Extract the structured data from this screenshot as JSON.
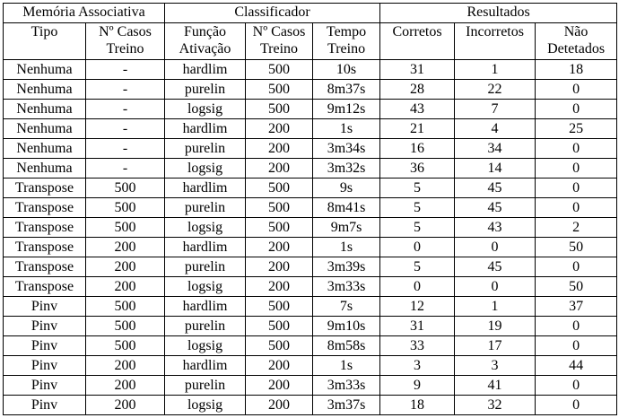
{
  "groups": {
    "memoria": "Memória Associativa",
    "classificador": "Classificador",
    "resultados": "Resultados"
  },
  "columns": {
    "tipo": "Tipo",
    "casos_mem_1": "Nº Casos",
    "casos_mem_2": "Treino",
    "funcao_1": "Função",
    "funcao_2": "Ativação",
    "casos_cls_1": "Nº Casos",
    "casos_cls_2": "Treino",
    "tempo_1": "Tempo",
    "tempo_2": "Treino",
    "corretos": "Corretos",
    "incorretos": "Incorretos",
    "nao_1": "Não",
    "nao_2": "Detetados"
  },
  "rows": [
    {
      "tipo": "Nenhuma",
      "casos_mem": "-",
      "funcao": "hardlim",
      "casos_cls": "500",
      "tempo": "10s",
      "corretos": "31",
      "incorretos": "1",
      "nao": "18"
    },
    {
      "tipo": "Nenhuma",
      "casos_mem": "-",
      "funcao": "purelin",
      "casos_cls": "500",
      "tempo": "8m37s",
      "corretos": "28",
      "incorretos": "22",
      "nao": "0"
    },
    {
      "tipo": "Nenhuma",
      "casos_mem": "-",
      "funcao": "logsig",
      "casos_cls": "500",
      "tempo": "9m12s",
      "corretos": "43",
      "incorretos": "7",
      "nao": "0"
    },
    {
      "tipo": "Nenhuma",
      "casos_mem": "-",
      "funcao": "hardlim",
      "casos_cls": "200",
      "tempo": "1s",
      "corretos": "21",
      "incorretos": "4",
      "nao": "25"
    },
    {
      "tipo": "Nenhuma",
      "casos_mem": "-",
      "funcao": "purelin",
      "casos_cls": "200",
      "tempo": "3m34s",
      "corretos": "16",
      "incorretos": "34",
      "nao": "0"
    },
    {
      "tipo": "Nenhuma",
      "casos_mem": "-",
      "funcao": "logsig",
      "casos_cls": "200",
      "tempo": "3m32s",
      "corretos": "36",
      "incorretos": "14",
      "nao": "0"
    },
    {
      "tipo": "Transpose",
      "casos_mem": "500",
      "funcao": "hardlim",
      "casos_cls": "500",
      "tempo": "9s",
      "corretos": "5",
      "incorretos": "45",
      "nao": "0"
    },
    {
      "tipo": "Transpose",
      "casos_mem": "500",
      "funcao": "purelin",
      "casos_cls": "500",
      "tempo": "8m41s",
      "corretos": "5",
      "incorretos": "45",
      "nao": "0"
    },
    {
      "tipo": "Transpose",
      "casos_mem": "500",
      "funcao": "logsig",
      "casos_cls": "500",
      "tempo": "9m7s",
      "corretos": "5",
      "incorretos": "43",
      "nao": "2"
    },
    {
      "tipo": "Transpose",
      "casos_mem": "200",
      "funcao": "hardlim",
      "casos_cls": "200",
      "tempo": "1s",
      "corretos": "0",
      "incorretos": "0",
      "nao": "50"
    },
    {
      "tipo": "Transpose",
      "casos_mem": "200",
      "funcao": "purelin",
      "casos_cls": "200",
      "tempo": "3m39s",
      "corretos": "5",
      "incorretos": "45",
      "nao": "0"
    },
    {
      "tipo": "Transpose",
      "casos_mem": "200",
      "funcao": "logsig",
      "casos_cls": "200",
      "tempo": "3m33s",
      "corretos": "0",
      "incorretos": "0",
      "nao": "50"
    },
    {
      "tipo": "Pinv",
      "casos_mem": "500",
      "funcao": "hardlim",
      "casos_cls": "500",
      "tempo": "7s",
      "corretos": "12",
      "incorretos": "1",
      "nao": "37"
    },
    {
      "tipo": "Pinv",
      "casos_mem": "500",
      "funcao": "purelin",
      "casos_cls": "500",
      "tempo": "9m10s",
      "corretos": "31",
      "incorretos": "19",
      "nao": "0"
    },
    {
      "tipo": "Pinv",
      "casos_mem": "500",
      "funcao": "logsig",
      "casos_cls": "500",
      "tempo": "8m58s",
      "corretos": "33",
      "incorretos": "17",
      "nao": "0"
    },
    {
      "tipo": "Pinv",
      "casos_mem": "200",
      "funcao": "hardlim",
      "casos_cls": "200",
      "tempo": "1s",
      "corretos": "3",
      "incorretos": "3",
      "nao": "44"
    },
    {
      "tipo": "Pinv",
      "casos_mem": "200",
      "funcao": "purelin",
      "casos_cls": "200",
      "tempo": "3m33s",
      "corretos": "9",
      "incorretos": "41",
      "nao": "0"
    },
    {
      "tipo": "Pinv",
      "casos_mem": "200",
      "funcao": "logsig",
      "casos_cls": "200",
      "tempo": "3m37s",
      "corretos": "18",
      "incorretos": "32",
      "nao": "0"
    }
  ]
}
